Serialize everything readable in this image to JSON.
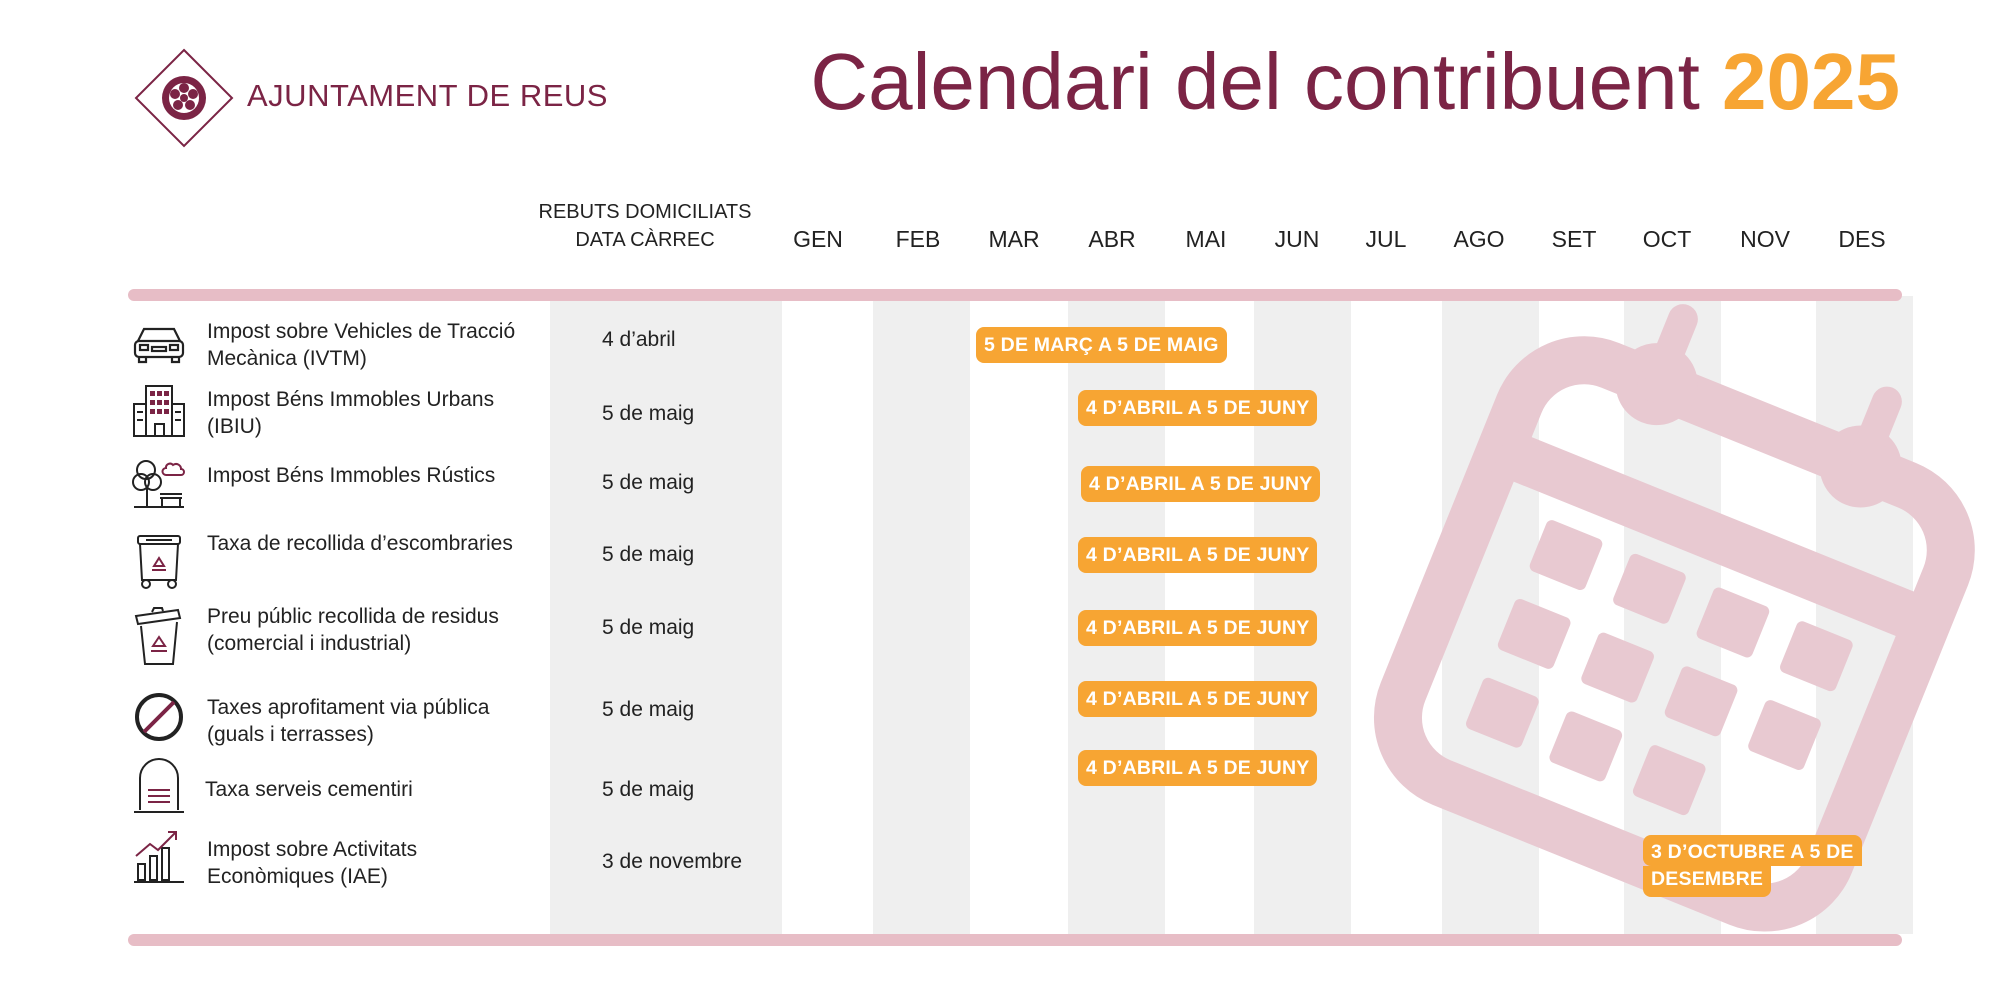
{
  "header": {
    "brand": "AJUNTAMENT DE REUS",
    "title": "Calendari del contribuent",
    "year": "2025"
  },
  "columns": {
    "domiciled_line1": "REBUTS DOMICILIATS",
    "domiciled_line2": "DATA CÀRREC",
    "months": [
      "GEN",
      "FEB",
      "MAR",
      "ABR",
      "MAI",
      "JUN",
      "JUL",
      "AGO",
      "SET",
      "OCT",
      "NOV",
      "DES"
    ]
  },
  "rows": [
    {
      "icon": "car-icon",
      "label": "Impost sobre Vehicles de Tracció Mecànica (IVTM)",
      "date": "4 d’abril",
      "period": "5 DE MARÇ A 5 DE MAIG"
    },
    {
      "icon": "building-icon",
      "label": "Impost Béns Immobles Urbans (IBIU)",
      "date": "5 de maig",
      "period": "4 D’ABRIL A 5 DE JUNY"
    },
    {
      "icon": "tree-bench-icon",
      "label": "Impost Béns Immobles Rústics",
      "date": "5 de maig",
      "period": "4 D’ABRIL A 5 DE JUNY"
    },
    {
      "icon": "recycling-container-icon",
      "label": "Taxa de recollida d’escombraries",
      "date": "5 de maig",
      "period": "4 D’ABRIL A 5 DE JUNY"
    },
    {
      "icon": "recycling-bin-icon",
      "label": "Preu públic recollida de residus (comercial i industrial)",
      "date": "5 de maig",
      "period": "4 D’ABRIL A 5 DE JUNY"
    },
    {
      "icon": "prohibited-icon",
      "label": "Taxes aprofitament via pública (guals i terrasses)",
      "date": "5 de maig",
      "period": "4 D’ABRIL A 5 DE JUNY"
    },
    {
      "icon": "tombstone-icon",
      "label": "Taxa serveis cementiri",
      "date": "5 de maig",
      "period": "4 D’ABRIL A 5 DE JUNY"
    },
    {
      "icon": "growth-chart-icon",
      "label": "Impost sobre Activitats Econòmiques (IAE)",
      "date": "3 de novembre",
      "period_line1": "3 D’OCTUBRE A 5 DE",
      "period_line2": "DESEMBRE"
    }
  ],
  "colors": {
    "brand": "#7b2445",
    "accent": "#f7a533",
    "bar": "#e7bdc6",
    "stripe": "#efefef",
    "calendar_watermark": "#e8c9d1"
  }
}
